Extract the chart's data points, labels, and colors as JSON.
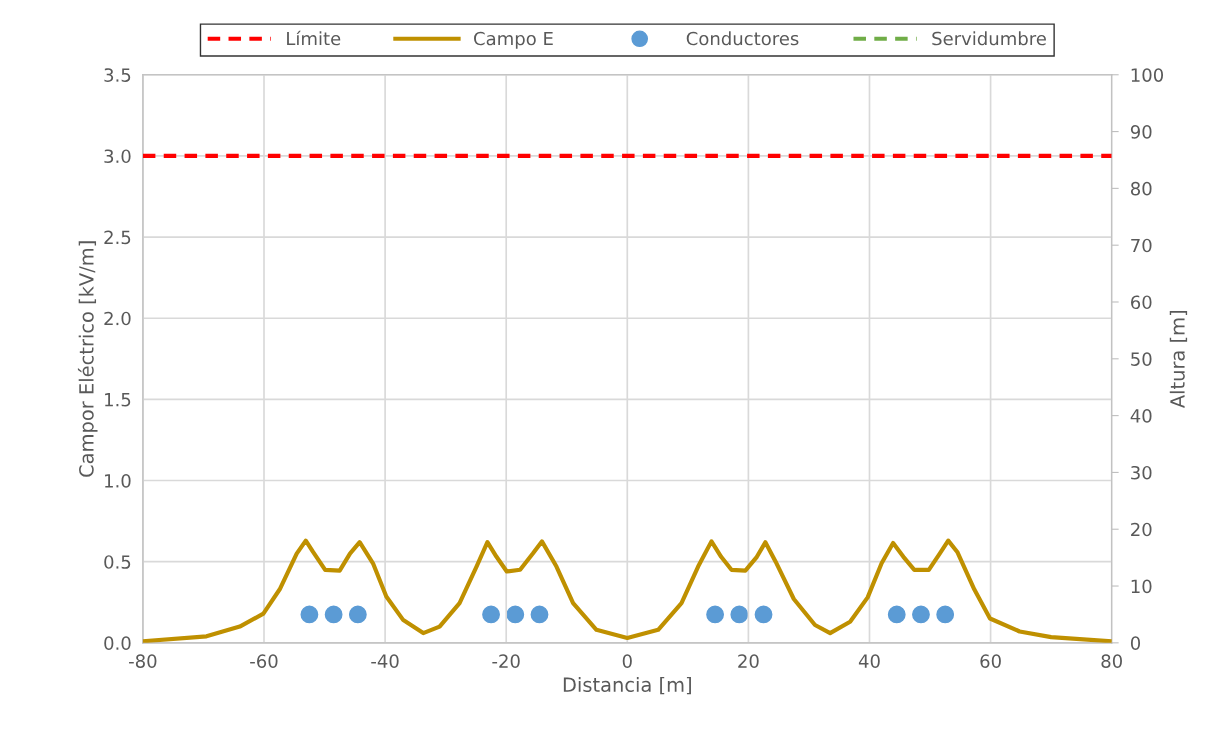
{
  "chart_data": {
    "type": "line",
    "xlabel": "Distancia [m]",
    "ylabel": "Campor Eléctrico [kV/m]",
    "y2label": "Altura [m]",
    "xlim": [
      -80,
      80
    ],
    "xticks": [
      -80,
      -60,
      -40,
      -20,
      0,
      20,
      40,
      60,
      80
    ],
    "ylim": [
      0,
      3.5
    ],
    "yticks": [
      {
        "value": 0,
        "label": "0.0"
      },
      {
        "value": 0.5,
        "label": "0.5"
      },
      {
        "value": 1,
        "label": "1.0"
      },
      {
        "value": 1.5,
        "label": "1.5"
      },
      {
        "value": 2,
        "label": "2.0"
      },
      {
        "value": 2.5,
        "label": "2.5"
      },
      {
        "value": 3,
        "label": "3.0"
      },
      {
        "value": 3.5,
        "label": "3.5"
      }
    ],
    "y2lim": [
      0,
      100
    ],
    "y2ticks": [
      0,
      10,
      20,
      30,
      40,
      50,
      60,
      70,
      80,
      90,
      100
    ],
    "grid": true,
    "legend": "top",
    "ref_lines": [
      {
        "axis": "y",
        "value": 3.0,
        "label": "Límite",
        "color": "#ff0000",
        "line_style": "dashed"
      }
    ],
    "series": [
      {
        "name": "Campo E",
        "color": "#bf9000",
        "marker": "none",
        "line_style": "solid",
        "x": [
          -80,
          -69.5,
          -64,
          -60.1,
          -57.4,
          -54.6,
          -53.1,
          -51.9,
          -49.9,
          -47.5,
          -45.8,
          -44.2,
          -42.0,
          -39.8,
          -37.0,
          -33.7,
          -31.0,
          -27.7,
          -24.9,
          -23.1,
          -21.6,
          -19.9,
          -17.7,
          -15.6,
          -14.1,
          -11.7,
          -8.95,
          -5.1,
          0,
          5.1,
          8.95,
          11.7,
          13.9,
          15.5,
          17.2,
          19.5,
          21.4,
          22.8,
          24.5,
          27.5,
          31.0,
          33.5,
          36.8,
          39.7,
          42.0,
          43.9,
          45.6,
          47.4,
          49.8,
          51.6,
          53.0,
          54.5,
          57.3,
          59.9,
          64.8,
          70.0,
          79.7
        ],
        "values": [
          0.01,
          0.04,
          0.1,
          0.18,
          0.33,
          0.55,
          0.63,
          0.56,
          0.45,
          0.445,
          0.55,
          0.62,
          0.49,
          0.285,
          0.14,
          0.06,
          0.1,
          0.245,
          0.47,
          0.62,
          0.53,
          0.44,
          0.45,
          0.55,
          0.625,
          0.47,
          0.245,
          0.08,
          0.03,
          0.08,
          0.245,
          0.47,
          0.625,
          0.53,
          0.45,
          0.445,
          0.53,
          0.62,
          0.5,
          0.27,
          0.11,
          0.06,
          0.13,
          0.28,
          0.49,
          0.615,
          0.53,
          0.45,
          0.45,
          0.55,
          0.63,
          0.56,
          0.33,
          0.15,
          0.07,
          0.035,
          0.01
        ]
      },
      {
        "name": "Conductores",
        "type": "scatter",
        "axis": "y2",
        "color": "#5b9bd5",
        "marker": "circle",
        "x": [
          -52.5,
          -48.5,
          -44.5,
          -22.5,
          -18.5,
          -14.5,
          14.5,
          18.5,
          22.5,
          44.5,
          48.5,
          52.5
        ],
        "values": [
          5,
          5,
          5,
          5,
          5,
          5,
          5,
          5,
          5,
          5,
          5,
          5
        ]
      },
      {
        "name": "Servidumbre",
        "type": "line",
        "color": "#70ad47",
        "line_style": "dashed",
        "marker": "none"
      }
    ]
  }
}
